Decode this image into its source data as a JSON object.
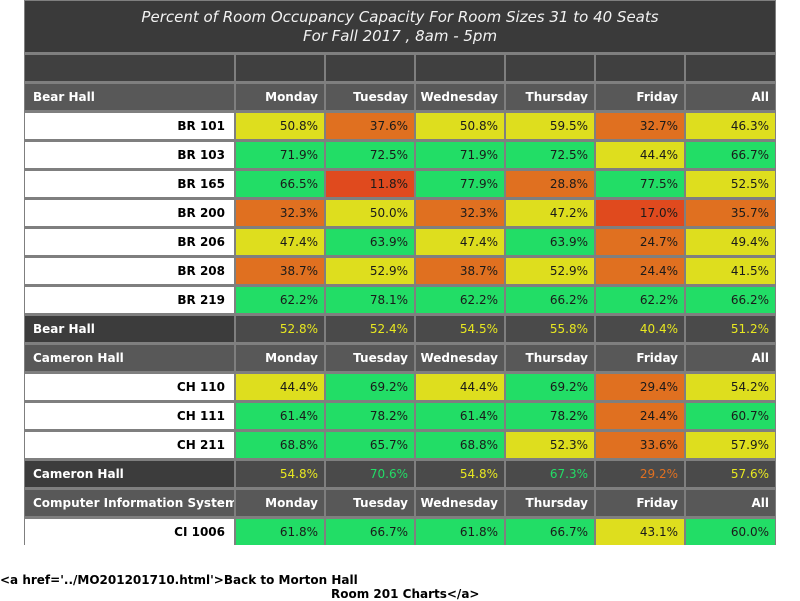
{
  "title": {
    "line1": "Percent of Room Occupancy Capacity For Room Sizes 31 to 40 Seats",
    "line2": "For Fall 2017  , 8am - 5pm"
  },
  "colors": {
    "green": "#22dd66",
    "yellow": "#dede1e",
    "orange": "#e07020",
    "red": "#e04a1e"
  },
  "sections": [
    {
      "name": "Bear Hall",
      "headers": [
        "Monday",
        "Tuesday",
        "Wednesday",
        "Thursday",
        "Friday",
        "All"
      ],
      "rows": [
        {
          "room": "BR 101",
          "values": [
            "50.8%",
            "37.6%",
            "50.8%",
            "59.5%",
            "32.7%",
            "46.3%"
          ],
          "levels": [
            "y",
            "o",
            "y",
            "y",
            "o",
            "y"
          ]
        },
        {
          "room": "BR 103",
          "values": [
            "71.9%",
            "72.5%",
            "71.9%",
            "72.5%",
            "44.4%",
            "66.7%"
          ],
          "levels": [
            "g",
            "g",
            "g",
            "g",
            "y",
            "g"
          ]
        },
        {
          "room": "BR 165",
          "values": [
            "66.5%",
            "11.8%",
            "77.9%",
            "28.8%",
            "77.5%",
            "52.5%"
          ],
          "levels": [
            "g",
            "r",
            "g",
            "o",
            "g",
            "y"
          ]
        },
        {
          "room": "BR 200",
          "values": [
            "32.3%",
            "50.0%",
            "32.3%",
            "47.2%",
            "17.0%",
            "35.7%"
          ],
          "levels": [
            "o",
            "y",
            "o",
            "y",
            "r",
            "o"
          ]
        },
        {
          "room": "BR 206",
          "values": [
            "47.4%",
            "63.9%",
            "47.4%",
            "63.9%",
            "24.7%",
            "49.4%"
          ],
          "levels": [
            "y",
            "g",
            "y",
            "g",
            "o",
            "y"
          ]
        },
        {
          "room": "BR 208",
          "values": [
            "38.7%",
            "52.9%",
            "38.7%",
            "52.9%",
            "24.4%",
            "41.5%"
          ],
          "levels": [
            "o",
            "y",
            "o",
            "y",
            "o",
            "y"
          ]
        },
        {
          "room": "BR 219",
          "values": [
            "62.2%",
            "78.1%",
            "62.2%",
            "66.2%",
            "62.2%",
            "66.2%"
          ],
          "levels": [
            "g",
            "g",
            "g",
            "g",
            "g",
            "g"
          ]
        }
      ],
      "summary": {
        "label": "Bear Hall",
        "values": [
          "52.8%",
          "52.4%",
          "54.5%",
          "55.8%",
          "40.4%",
          "51.2%"
        ],
        "levels": [
          "y",
          "y",
          "y",
          "y",
          "y",
          "y"
        ]
      }
    },
    {
      "name": "Cameron Hall",
      "headers": [
        "Monday",
        "Tuesday",
        "Wednesday",
        "Thursday",
        "Friday",
        "All"
      ],
      "rows": [
        {
          "room": "CH 110",
          "values": [
            "44.4%",
            "69.2%",
            "44.4%",
            "69.2%",
            "29.4%",
            "54.2%"
          ],
          "levels": [
            "y",
            "g",
            "y",
            "g",
            "o",
            "y"
          ]
        },
        {
          "room": "CH 111",
          "values": [
            "61.4%",
            "78.2%",
            "61.4%",
            "78.2%",
            "24.4%",
            "60.7%"
          ],
          "levels": [
            "g",
            "g",
            "g",
            "g",
            "o",
            "g"
          ]
        },
        {
          "room": "CH 211",
          "values": [
            "68.8%",
            "65.7%",
            "68.8%",
            "52.3%",
            "33.6%",
            "57.9%"
          ],
          "levels": [
            "g",
            "g",
            "g",
            "y",
            "o",
            "y"
          ]
        }
      ],
      "summary": {
        "label": "Cameron Hall",
        "values": [
          "54.8%",
          "70.6%",
          "54.8%",
          "67.3%",
          "29.2%",
          "57.6%"
        ],
        "levels": [
          "y",
          "g",
          "y",
          "g",
          "o",
          "y"
        ]
      }
    },
    {
      "name": "Computer Information Systems",
      "headers": [
        "Monday",
        "Tuesday",
        "Wednesday",
        "Thursday",
        "Friday",
        "All"
      ],
      "rows": [
        {
          "room": "CI 1006",
          "values": [
            "61.8%",
            "66.7%",
            "61.8%",
            "66.7%",
            "43.1%",
            "60.0%"
          ],
          "levels": [
            "g",
            "g",
            "g",
            "g",
            "y",
            "g"
          ]
        }
      ]
    }
  ],
  "footer": {
    "line1": "<a href='../MO201201710.html'>Back to Morton Hall",
    "line2": "Room 201 Charts</a>"
  }
}
